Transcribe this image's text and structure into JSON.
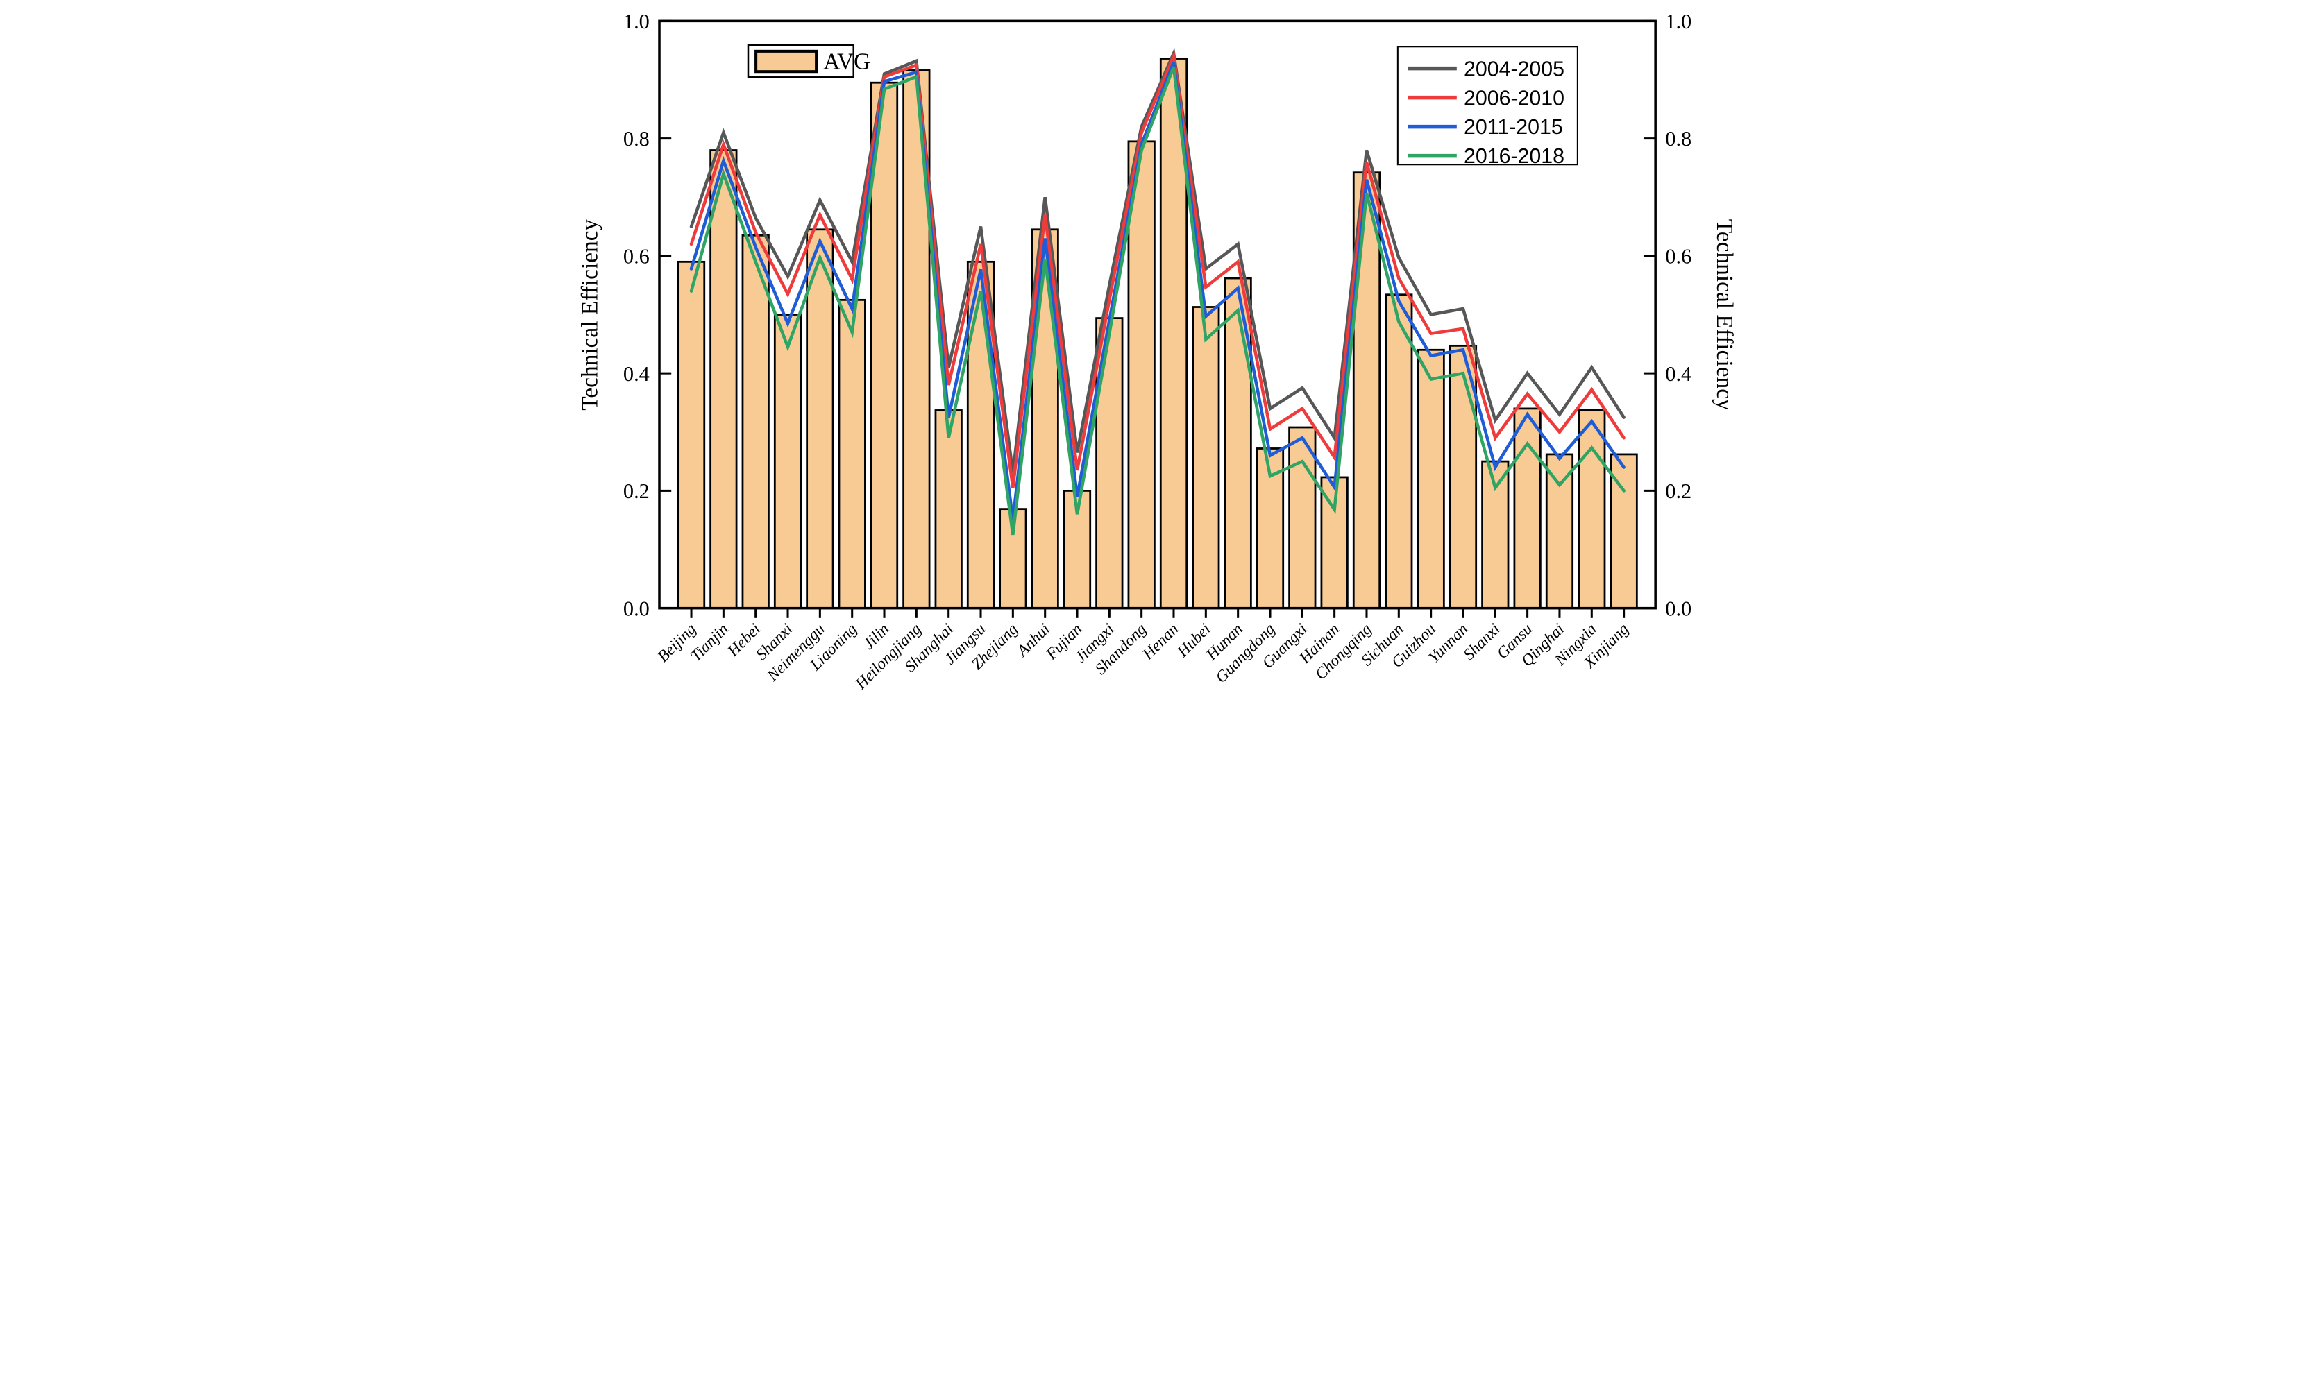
{
  "chart_data": {
    "type": "bar+line",
    "title": "",
    "xlabel": "",
    "ylabel": "Technical Efficiency",
    "ylabel_right": "Technical Efficiency",
    "ylim": [
      0.0,
      1.0
    ],
    "ytick_step": 0.2,
    "yticks": [
      "0.0",
      "0.2",
      "0.4",
      "0.6",
      "0.8",
      "1.0"
    ],
    "grid": "off",
    "bar_legend_label": "AVG",
    "bar_color": "#F9CB94",
    "bar_border_color": "#000000",
    "legend_position": "top-right",
    "categories": [
      "Beijing",
      "Tianjin",
      "Hebei",
      "Shanxi",
      "Neimenggu",
      "Liaoning",
      "Jilin",
      "Heilongjiang",
      "Shanghai",
      "Jiangsu",
      "Zhejiang",
      "Anhui",
      "Fujian",
      "Jiangxi",
      "Shandong",
      "Henan",
      "Hubei",
      "Hunan",
      "Guangdong",
      "Guangxi",
      "Hainan",
      "Chongqing",
      "Sichuan",
      "Guizhou",
      "Yunnan",
      "Shanxi",
      "Gansu",
      "Qinghai",
      "Ningxia",
      "Xinjiang"
    ],
    "bar_values": [
      0.59,
      0.78,
      0.635,
      0.5,
      0.645,
      0.525,
      0.895,
      0.916,
      0.337,
      0.59,
      0.169,
      0.645,
      0.2,
      0.494,
      0.795,
      0.936,
      0.513,
      0.562,
      0.272,
      0.308,
      0.223,
      0.742,
      0.534,
      0.44,
      0.447,
      0.25,
      0.34,
      0.262,
      0.338,
      0.262
    ],
    "series": [
      {
        "name": "2004-2005",
        "color": "#575757",
        "values": [
          0.65,
          0.81,
          0.665,
          0.565,
          0.695,
          0.59,
          0.91,
          0.932,
          0.41,
          0.65,
          0.23,
          0.7,
          0.265,
          0.55,
          0.82,
          0.945,
          0.578,
          0.62,
          0.34,
          0.375,
          0.29,
          0.78,
          0.597,
          0.5,
          0.51,
          0.32,
          0.4,
          0.33,
          0.41,
          0.325
        ]
      },
      {
        "name": "2006-2010",
        "color": "#EE3B3B",
        "values": [
          0.62,
          0.79,
          0.64,
          0.535,
          0.67,
          0.56,
          0.905,
          0.925,
          0.38,
          0.62,
          0.205,
          0.67,
          0.235,
          0.525,
          0.81,
          0.94,
          0.547,
          0.59,
          0.305,
          0.34,
          0.257,
          0.76,
          0.562,
          0.468,
          0.476,
          0.29,
          0.365,
          0.3,
          0.372,
          0.29
        ]
      },
      {
        "name": "2011-2015",
        "color": "#1F5DD6",
        "values": [
          0.578,
          0.762,
          0.615,
          0.485,
          0.625,
          0.51,
          0.897,
          0.913,
          0.325,
          0.577,
          0.15,
          0.63,
          0.19,
          0.49,
          0.79,
          0.93,
          0.497,
          0.545,
          0.26,
          0.29,
          0.206,
          0.73,
          0.523,
          0.43,
          0.44,
          0.24,
          0.33,
          0.255,
          0.318,
          0.24
        ]
      },
      {
        "name": "2016-2018",
        "color": "#30A464",
        "values": [
          0.54,
          0.74,
          0.59,
          0.445,
          0.597,
          0.47,
          0.884,
          0.905,
          0.29,
          0.54,
          0.125,
          0.595,
          0.16,
          0.468,
          0.78,
          0.922,
          0.458,
          0.507,
          0.225,
          0.25,
          0.168,
          0.707,
          0.488,
          0.39,
          0.4,
          0.205,
          0.28,
          0.21,
          0.273,
          0.2
        ]
      }
    ]
  }
}
